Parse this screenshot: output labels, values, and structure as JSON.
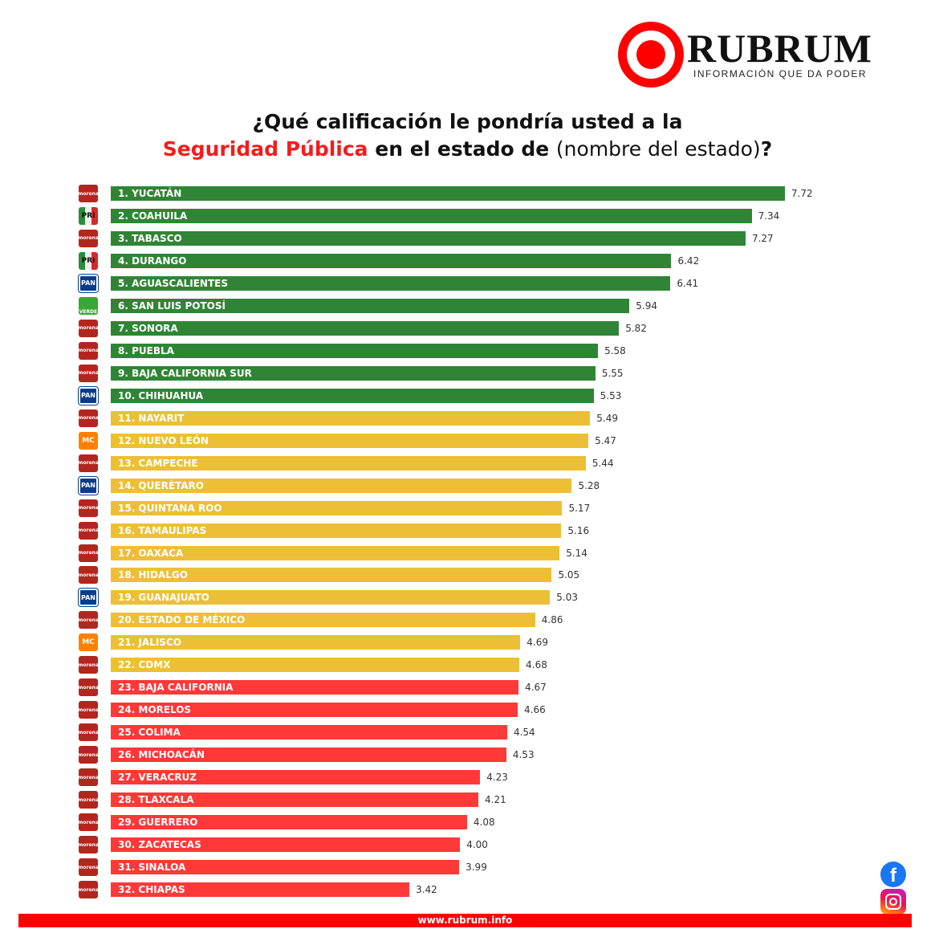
{
  "logo": {
    "brand": "RUBRUM",
    "tagline": "INFORMACIÓN QUE DA PODER"
  },
  "title": {
    "line1": "¿Qué calificación le pondría usted a la",
    "highlight": "Seguridad Pública",
    "line2_mid": " en el estado de ",
    "line2_paren": "(nombre del estado)",
    "line2_end": "?"
  },
  "footer": {
    "url": "www.rubrum.info"
  },
  "party_labels": {
    "morena": "morena",
    "pri": "PRI",
    "pan": "PAN",
    "verde": "VERDE",
    "mc": "MC"
  },
  "colors": {
    "green": "#2f8535",
    "yellow": "#ecbf37",
    "red": "#ff3838"
  },
  "chart_data": {
    "type": "bar",
    "orientation": "horizontal",
    "title": "¿Qué calificación le pondría usted a la Seguridad Pública en el estado de (nombre del estado)?",
    "xlim": [
      0,
      8
    ],
    "categories": [
      "1. YUCATÁN",
      "2. COAHUILA",
      "3. TABASCO",
      "4. DURANGO",
      "5. AGUASCALIENTES",
      "6. SAN LUIS POTOSÍ",
      "7. SONORA",
      "8. PUEBLA",
      "9. BAJA CALIFORNIA SUR",
      "10. CHIHUAHUA",
      "11. NAYARIT",
      "12. NUEVO LEÓN",
      "13. CAMPECHE",
      "14. QUERÉTARO",
      "15. QUINTANA ROO",
      "16. TAMAULIPAS",
      "17. OAXACA",
      "18. HIDALGO",
      "19. GUANAJUATO",
      "20. ESTADO DE MÉXICO",
      "21. JALISCO",
      "22. CDMX",
      "23. BAJA CALIFORNIA",
      "24. MORELOS",
      "25. COLIMA",
      "26. MICHOACÁN",
      "27. VERACRUZ",
      "28. TLAXCALA",
      "29. GUERRERO",
      "30. ZACATECAS",
      "31. SINALOA",
      "32. CHIAPAS"
    ],
    "values": [
      "7.72",
      "7.34",
      "7.27",
      "6.42",
      "6.41",
      "5.94",
      "5.82",
      "5.58",
      "5.55",
      "5.53",
      "5.49",
      "5.47",
      "5.44",
      "5.28",
      "5.17",
      "5.16",
      "5.14",
      "5.05",
      "5.03",
      "4.86",
      "4.69",
      "4.68",
      "4.67",
      "4.66",
      "4.54",
      "4.53",
      "4.23",
      "4.21",
      "4.08",
      "4.00",
      "3.99",
      "3.42"
    ],
    "parties": [
      "morena",
      "pri",
      "morena",
      "pri",
      "pan",
      "verde",
      "morena",
      "morena",
      "morena",
      "pan",
      "morena",
      "mc",
      "morena",
      "pan",
      "morena",
      "morena",
      "morena",
      "morena",
      "pan",
      "morena",
      "mc",
      "morena",
      "morena",
      "morena",
      "morena",
      "morena",
      "morena",
      "morena",
      "morena",
      "morena",
      "morena",
      "morena"
    ],
    "color_groups": [
      "green",
      "green",
      "green",
      "green",
      "green",
      "green",
      "green",
      "green",
      "green",
      "green",
      "yellow",
      "yellow",
      "yellow",
      "yellow",
      "yellow",
      "yellow",
      "yellow",
      "yellow",
      "yellow",
      "yellow",
      "yellow",
      "yellow",
      "red",
      "red",
      "red",
      "red",
      "red",
      "red",
      "red",
      "red",
      "red",
      "red"
    ]
  }
}
